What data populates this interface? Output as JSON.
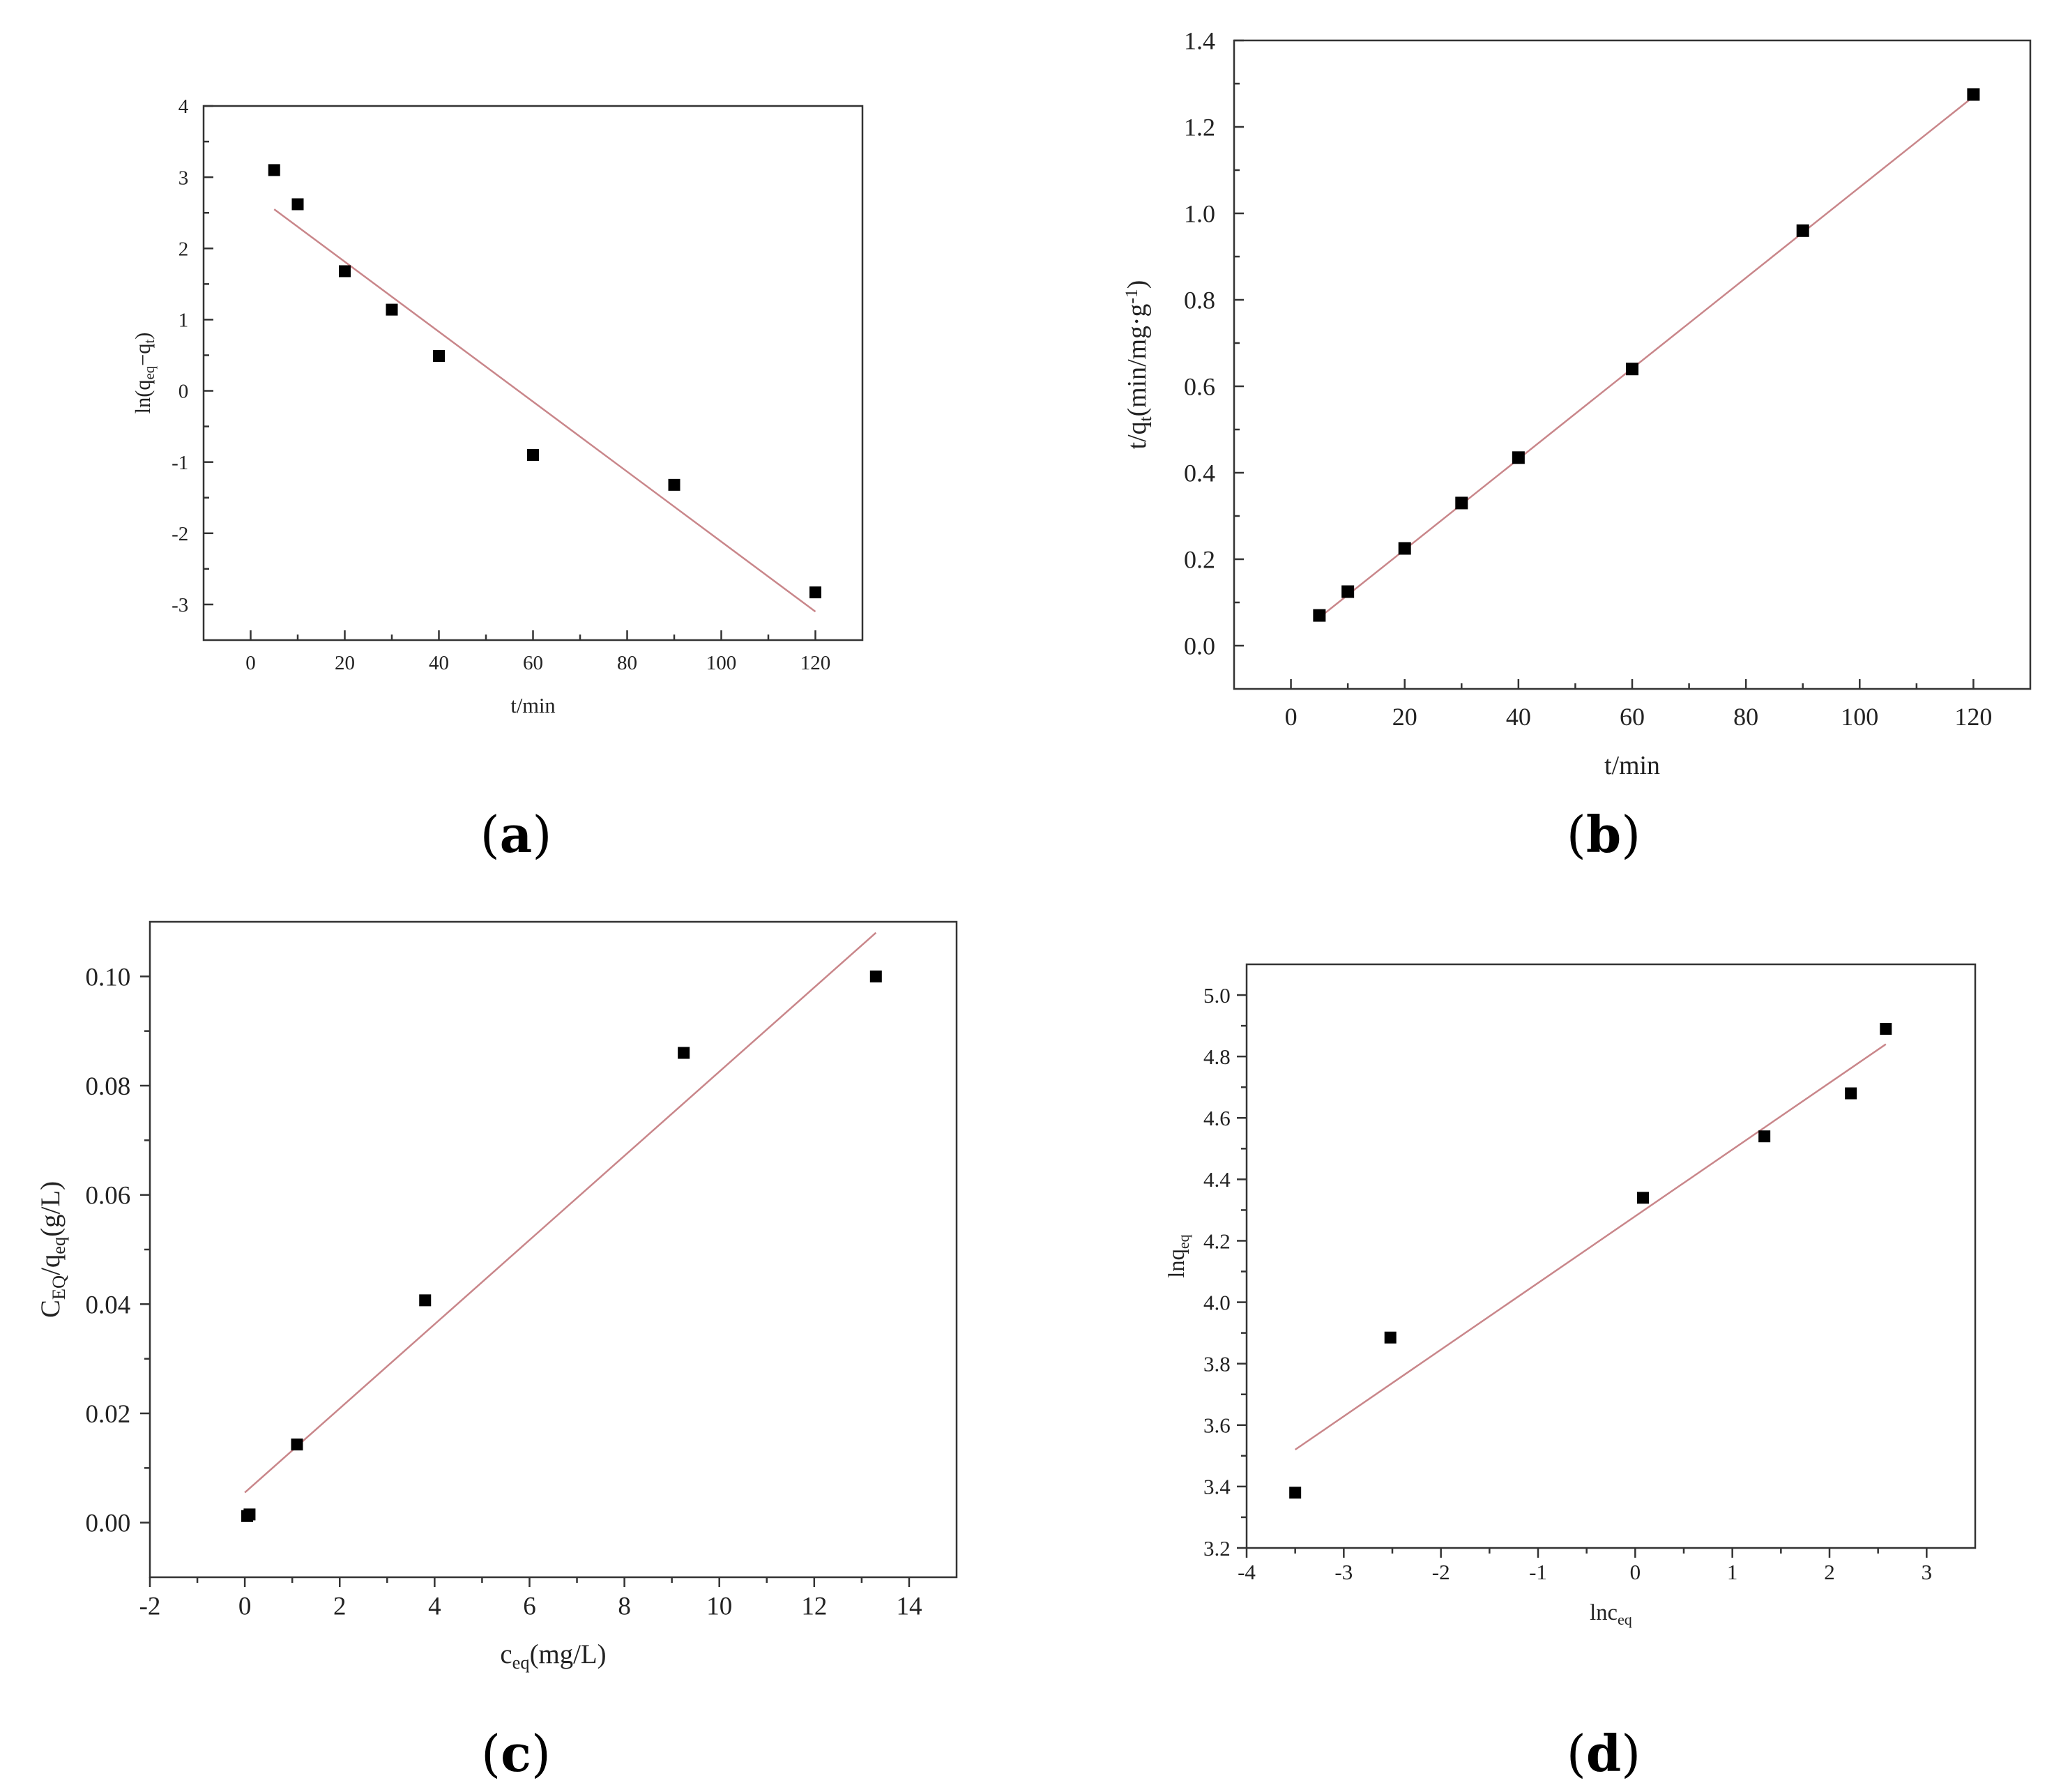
{
  "chart_data": [
    {
      "panel": "(a)",
      "type": "scatter",
      "xlabel": "t/min",
      "ylabel": "ln(q_eq−q_t)",
      "xlim": [
        -10,
        130
      ],
      "ylim": [
        -3.5,
        4
      ],
      "xticks": [
        0,
        20,
        40,
        60,
        80,
        100,
        120
      ],
      "yticks": [
        -3,
        -2,
        -1,
        0,
        1,
        2,
        3,
        4
      ],
      "grid": false,
      "series": [
        {
          "x": [
            5,
            10,
            20,
            30,
            40,
            60,
            90,
            120
          ],
          "y": [
            3.1,
            2.62,
            1.68,
            1.14,
            0.49,
            -0.9,
            -1.32,
            -2.83
          ]
        }
      ],
      "fit_line": {
        "x": [
          5,
          120
        ],
        "y": [
          2.55,
          -3.1
        ]
      }
    },
    {
      "panel": "(b)",
      "type": "scatter",
      "xlabel": "t/min",
      "ylabel": "t/q_t(min/mg·g^-1)",
      "xlim": [
        -10,
        130
      ],
      "ylim": [
        -0.1,
        1.4
      ],
      "xticks": [
        0,
        20,
        40,
        60,
        80,
        100,
        120
      ],
      "yticks": [
        0.0,
        0.2,
        0.4,
        0.6,
        0.8,
        1.0,
        1.2,
        1.4
      ],
      "yticklabels": [
        "0.0",
        "0.2",
        "0.4",
        "0.6",
        "0.8",
        "1.0",
        "1.2",
        "1.4"
      ],
      "grid": false,
      "series": [
        {
          "x": [
            5,
            10,
            20,
            30,
            40,
            60,
            90,
            120
          ],
          "y": [
            0.07,
            0.125,
            0.225,
            0.33,
            0.435,
            0.64,
            0.96,
            1.275
          ]
        }
      ],
      "fit_line": {
        "x": [
          5,
          120
        ],
        "y": [
          0.065,
          1.27
        ]
      }
    },
    {
      "panel": "(c)",
      "type": "scatter",
      "xlabel": "c_eq(mg/L)",
      "ylabel": "C_EQ/q_eq(g/L)",
      "xlim": [
        -2,
        15
      ],
      "ylim": [
        -0.01,
        0.11
      ],
      "xticks": [
        -2,
        0,
        2,
        4,
        6,
        8,
        10,
        12,
        14
      ],
      "yticks": [
        0.0,
        0.02,
        0.04,
        0.06,
        0.08,
        0.1
      ],
      "yticklabels": [
        "0.00",
        "0.02",
        "0.04",
        "0.06",
        "0.08",
        "0.10"
      ],
      "grid": false,
      "series": [
        {
          "x": [
            0.05,
            0.1,
            1.1,
            3.8,
            9.25,
            13.3
          ],
          "y": [
            0.0012,
            0.0015,
            0.0143,
            0.0407,
            0.086,
            0.1
          ]
        }
      ],
      "fit_line": {
        "x": [
          0,
          13.3
        ],
        "y": [
          0.0055,
          0.108
        ]
      }
    },
    {
      "panel": "(d)",
      "type": "scatter",
      "xlabel": "lnc_eq",
      "ylabel": "lnq_eq",
      "xlim": [
        -4,
        3.5
      ],
      "ylim": [
        3.2,
        5.1
      ],
      "xticks": [
        -4,
        -3,
        -2,
        -1,
        0,
        1,
        2,
        3
      ],
      "yticks": [
        3.2,
        3.4,
        3.6,
        3.8,
        4.0,
        4.2,
        4.4,
        4.6,
        4.8,
        5.0
      ],
      "yticklabels": [
        "3.2",
        "3.4",
        "3.6",
        "3.8",
        "4.0",
        "4.2",
        "4.4",
        "4.6",
        "4.8",
        "5.0"
      ],
      "grid": false,
      "series": [
        {
          "x": [
            -3.5,
            -2.52,
            0.08,
            1.33,
            2.22,
            2.58
          ],
          "y": [
            3.38,
            3.885,
            4.34,
            4.54,
            4.68,
            4.89
          ]
        }
      ],
      "fit_line": {
        "x": [
          -3.5,
          2.58
        ],
        "y": [
          3.52,
          4.84
        ]
      }
    }
  ]
}
